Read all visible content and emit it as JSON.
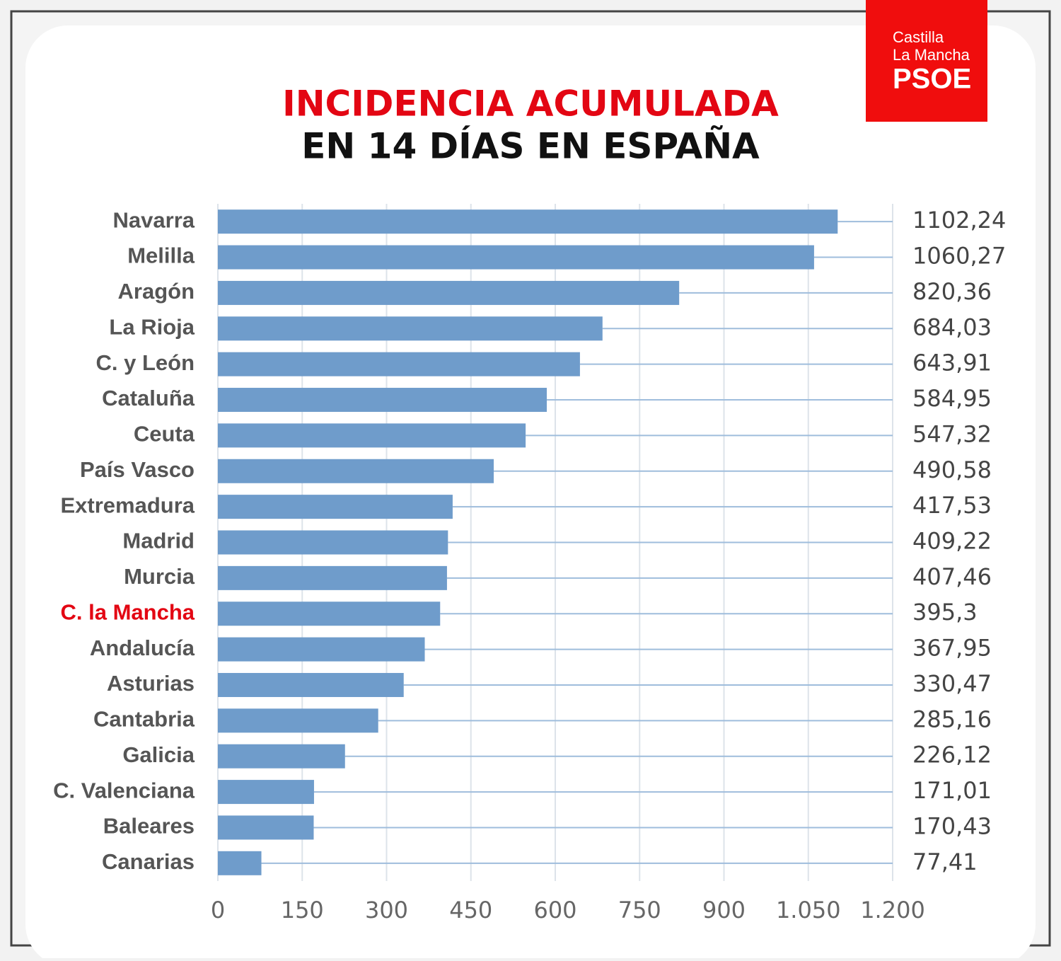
{
  "logo": {
    "line1": "Castilla",
    "line2": "La Mancha",
    "brand": "PSOE"
  },
  "chart_data": {
    "type": "barh",
    "title": "INCIDENCIA ACUMULADA",
    "subtitle": "EN 14 DÍAS EN ESPAÑA",
    "categories": [
      "Navarra",
      "Melilla",
      "Aragón",
      "La Rioja",
      "C. y León",
      "Cataluña",
      "Ceuta",
      "País Vasco",
      "Extremadura",
      "Madrid",
      "Murcia",
      "C. la Mancha",
      "Andalucía",
      "Asturias",
      "Cantabria",
      "Galicia",
      "C. Valenciana",
      "Baleares",
      "Canarias"
    ],
    "values": [
      1102.24,
      1060.27,
      820.36,
      684.03,
      643.91,
      584.95,
      547.32,
      490.58,
      417.53,
      409.22,
      407.46,
      395.3,
      367.95,
      330.47,
      285.16,
      226.12,
      171.01,
      170.43,
      77.41
    ],
    "value_labels": [
      "1102,24",
      "1060,27",
      "820,36",
      "684,03",
      "643,91",
      "584,95",
      "547,32",
      "490,58",
      "417,53",
      "409,22",
      "407,46",
      "395,3",
      "367,95",
      "330,47",
      "285,16",
      "226,12",
      "171,01",
      "170,43",
      "77,41"
    ],
    "category_colors": [
      "#555555",
      "#555555",
      "#555555",
      "#555555",
      "#555555",
      "#555555",
      "#555555",
      "#555555",
      "#555555",
      "#555555",
      "#555555",
      "#e30613",
      "#555555",
      "#555555",
      "#555555",
      "#555555",
      "#555555",
      "#555555",
      "#555555"
    ],
    "color": "#6f9ccb",
    "xlim": [
      0,
      1200
    ],
    "xticks": [
      0,
      150,
      300,
      450,
      600,
      750,
      900,
      {
        "value": 1050,
        "label": "1.050"
      },
      {
        "value": 1200,
        "label": "1.200"
      }
    ],
    "grid": true
  }
}
